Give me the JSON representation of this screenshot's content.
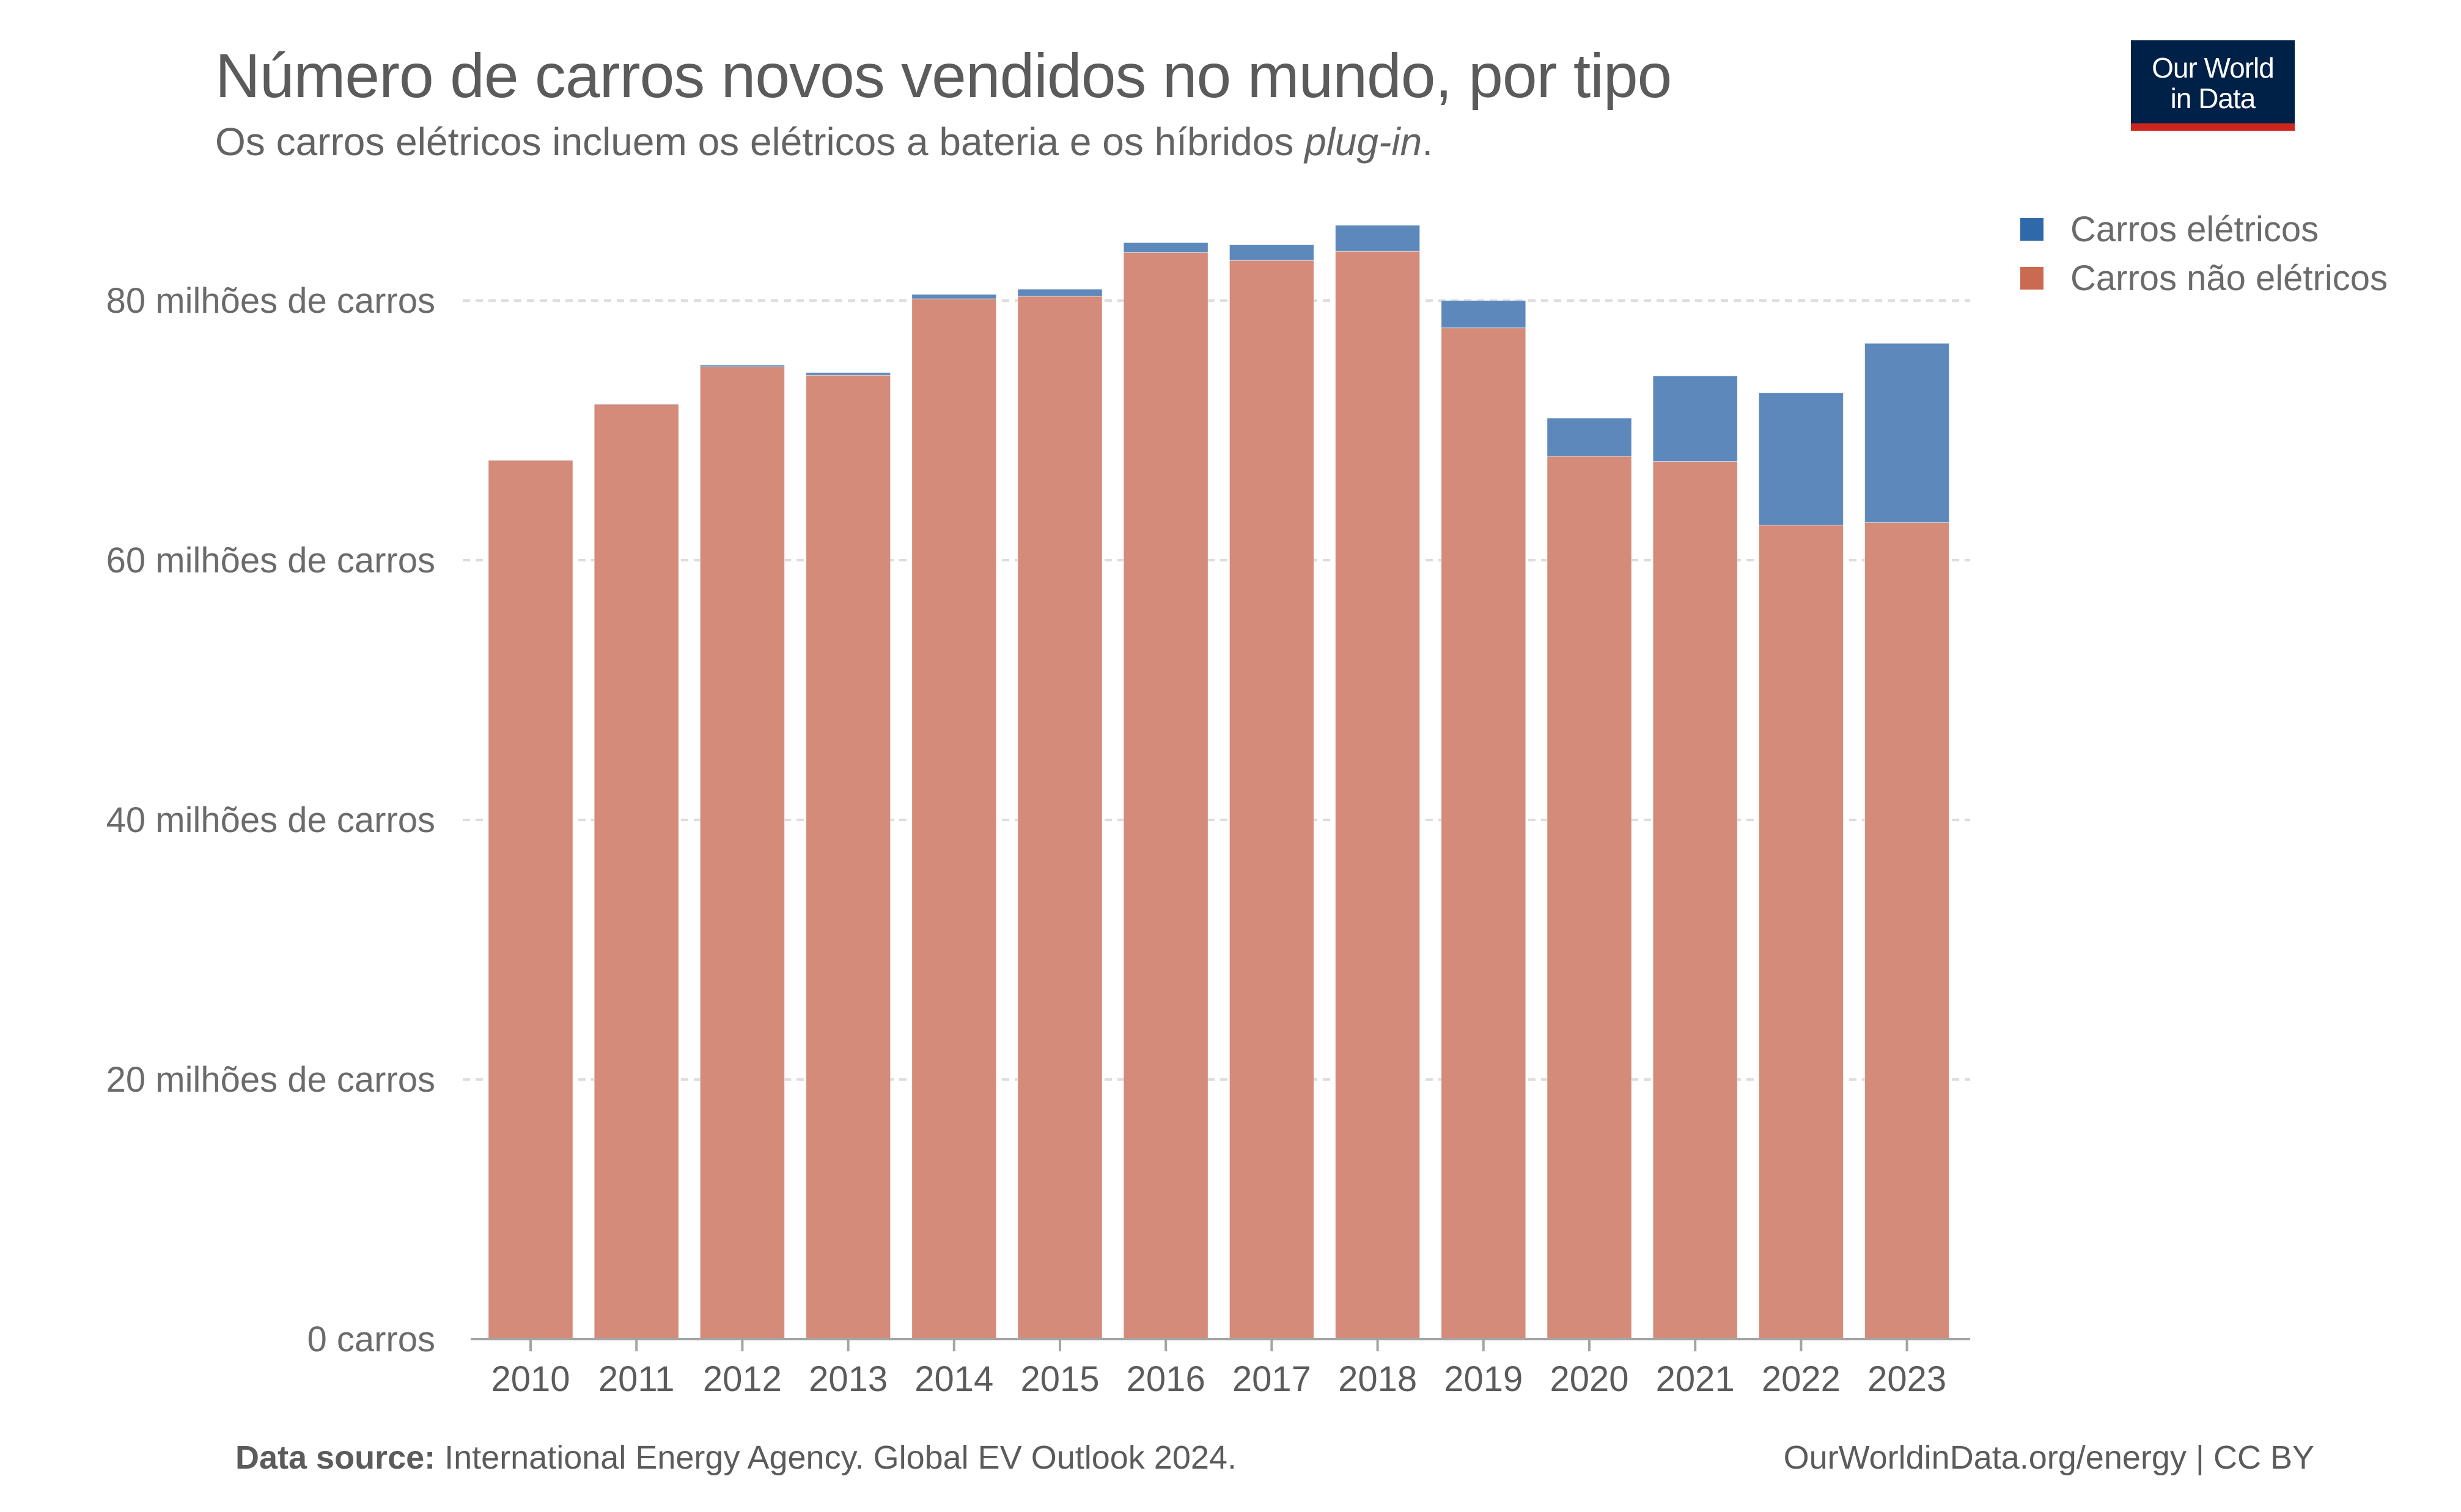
{
  "header": {
    "title": "Número de carros novos vendidos no mundo, por tipo",
    "subtitle_main": "Os carros elétricos incluem os elétricos a bateria e os híbridos ",
    "subtitle_italic": "plug-in",
    "subtitle_end": "."
  },
  "logo": {
    "line1": "Our World",
    "line2": "in Data",
    "bg_color": "#002147",
    "accent_color": "#ce261e"
  },
  "footer": {
    "source_label": "Data source:",
    "source_text": " International Energy Agency. Global EV Outlook 2024.",
    "credit": "OurWorldinData.org/energy | CC BY"
  },
  "colors": {
    "electric_bar": "#5d88bb",
    "non_electric_bar": "#d48b79",
    "electric_legend": "#2f69aa",
    "non_electric_legend": "#ca6a51",
    "grid": "#dddddd",
    "axis": "#a3a3a3",
    "tick_text": "#6b6b6b"
  },
  "chart_data": {
    "type": "bar",
    "stacked": true,
    "title": "Número de carros novos vendidos no mundo, por tipo",
    "subtitle": "Os carros elétricos incluem os elétricos a bateria e os híbridos plug-in.",
    "xlabel": "",
    "ylabel": "",
    "unit": "milhões de carros",
    "categories": [
      "2010",
      "2011",
      "2012",
      "2013",
      "2014",
      "2015",
      "2016",
      "2017",
      "2018",
      "2019",
      "2020",
      "2021",
      "2022",
      "2023"
    ],
    "series": [
      {
        "name": "Carros não elétricos",
        "values": [
          67.7,
          72.0,
          74.9,
          74.25,
          80.14,
          80.33,
          83.7,
          83.1,
          83.8,
          77.9,
          68.0,
          67.6,
          62.7,
          62.9
        ]
      },
      {
        "name": "Carros elétricos",
        "values": [
          0.01,
          0.05,
          0.13,
          0.2,
          0.33,
          0.55,
          0.76,
          1.2,
          2.0,
          2.1,
          2.95,
          6.6,
          10.2,
          13.8
        ]
      }
    ],
    "ylim": [
      0,
      86
    ],
    "yticks": [
      0,
      20,
      40,
      60,
      80
    ],
    "ytick_labels": [
      "0 carros",
      "20 milhões de carros",
      "40 milhões de carros",
      "60 milhões de carros",
      "80 milhões de carros"
    ],
    "grid": true,
    "legend": {
      "position": "top-right",
      "entries": [
        "Carros elétricos",
        "Carros não elétricos"
      ]
    }
  }
}
